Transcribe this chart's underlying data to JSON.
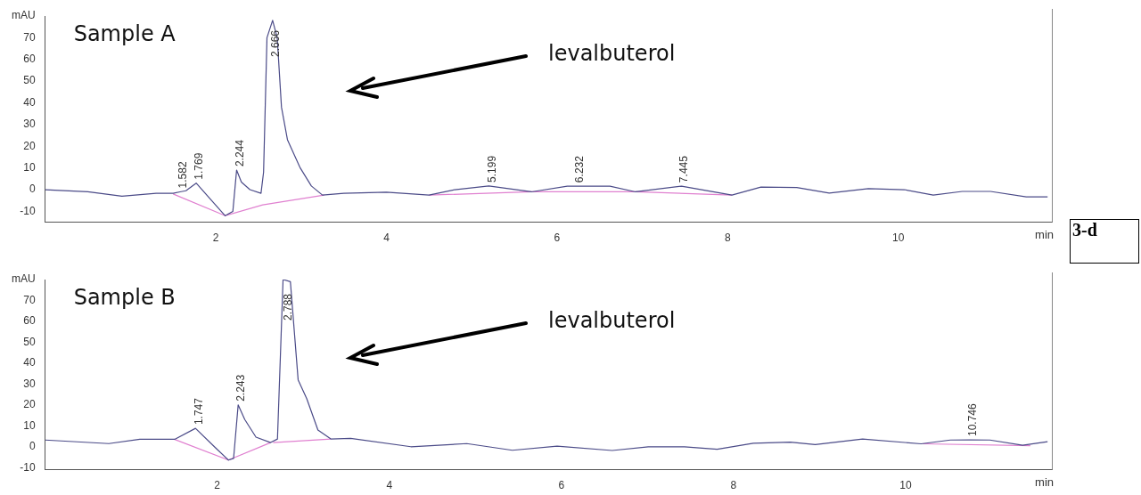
{
  "chart_data": [
    {
      "type": "line",
      "title": "Sample A",
      "xlim": [
        0,
        11.8
      ],
      "xticks": [
        2,
        4,
        6,
        8,
        10
      ],
      "xlabel": "min",
      "ylim": [
        -15,
        80
      ],
      "yticks": [
        -10,
        0,
        10,
        20,
        30,
        40,
        50,
        60,
        70,
        {
          "value": 80,
          "label": "mAU"
        }
      ],
      "grid": false,
      "legend": false,
      "marker": "none",
      "line_style": "solid",
      "series": [
        {
          "color": "#4b4b88",
          "x": [
            0,
            0.5,
            0.9,
            1.3,
            1.5,
            1.58,
            1.65,
            1.77,
            1.95,
            2.11,
            2.2,
            2.244,
            2.3,
            2.4,
            2.53,
            2.56,
            2.6,
            2.666,
            2.72,
            2.77,
            2.84,
            2.99,
            3.12,
            3.25,
            3.5,
            4.0,
            4.5,
            4.8,
            5.2,
            5.7,
            6.12,
            6.62,
            6.92,
            7.46,
            8.05,
            8.39,
            8.81,
            9.19,
            9.65,
            10.07,
            10.41,
            10.75,
            11.08,
            11.5,
            11.75
          ],
          "values": [
            0,
            -1,
            -3,
            -1.7,
            -1.7,
            -1,
            -0.5,
            3,
            -5,
            -12,
            -10,
            9,
            3.5,
            0,
            -1.7,
            8,
            70,
            78,
            70,
            38,
            23,
            10,
            1.7,
            -2.5,
            -1.7,
            -1.2,
            -2.5,
            0,
            1.7,
            -1,
            1.6,
            1.6,
            -1,
            1.6,
            -2.5,
            1.2,
            1,
            -1.6,
            0.5,
            0,
            -2.5,
            -0.8,
            -0.8,
            -3.3,
            -3.3
          ]
        },
        {
          "color": "#e080d0",
          "x": [
            1.5,
            2.11,
            2.55,
            3.27,
            3.4,
            4.5,
            5.7,
            6.92,
            8.05
          ],
          "values": [
            -2,
            -12,
            -7,
            -2.5,
            null,
            -2.5,
            -1,
            -1,
            -2.5
          ]
        }
      ],
      "annotations": [
        {
          "text": "1.582",
          "x": 1.582,
          "y": -1
        },
        {
          "text": "1.769",
          "x": 1.769,
          "y": 3
        },
        {
          "text": "2.244",
          "x": 2.244,
          "y": 9
        },
        {
          "text": "2.666",
          "x": 2.666,
          "y": 78
        },
        {
          "text": "5.199",
          "x": 5.199,
          "y": 1.7
        },
        {
          "text": "6.232",
          "x": 6.232,
          "y": 1.6
        },
        {
          "text": "7.445",
          "x": 7.445,
          "y": 1.6
        },
        "levalbuterol",
        "3-d"
      ]
    },
    {
      "type": "line",
      "title": "Sample B",
      "xlim": [
        0,
        11.7
      ],
      "xticks": [
        2,
        4,
        6,
        8,
        10
      ],
      "xlabel": "min",
      "ylim": [
        -11,
        80
      ],
      "yticks": [
        -10,
        0,
        10,
        20,
        30,
        40,
        50,
        60,
        70,
        {
          "value": 80,
          "label": "mAU"
        }
      ],
      "grid": false,
      "legend": false,
      "marker": "none",
      "line_style": "solid",
      "series": [
        {
          "color": "#4b4b88",
          "x": [
            0,
            0.74,
            1.1,
            1.51,
            1.747,
            1.98,
            2.13,
            2.19,
            2.243,
            2.32,
            2.45,
            2.62,
            2.7,
            2.765,
            2.85,
            2.94,
            3.04,
            3.17,
            3.32,
            3.55,
            4.25,
            4.9,
            5.43,
            5.95,
            6.59,
            7.01,
            7.43,
            7.81,
            8.23,
            8.66,
            8.95,
            9.5,
            10.18,
            10.52,
            10.746,
            10.98,
            11.36,
            11.65
          ],
          "values": [
            3.2,
            1.5,
            3.6,
            3.6,
            8.8,
            -0.5,
            -6.4,
            -5.6,
            20,
            13,
            4.6,
            2,
            3.7,
            80,
            79,
            32,
            23,
            8,
            3.7,
            4,
            0,
            1.5,
            -1.7,
            0.3,
            -1.8,
            0,
            0,
            -1.2,
            1.7,
            2.2,
            1,
            3.7,
            1.4,
            3.2,
            3.3,
            3.2,
            0.7,
            2.4
          ]
        },
        {
          "color": "#e080d0",
          "x": [
            1.5,
            2.13,
            2.62,
            2.63,
            2.65,
            3.32,
            3.5,
            10.2,
            11.45
          ],
          "values": [
            3.6,
            -6.4,
            2,
            null,
            2,
            3.7,
            null,
            1.4,
            0.5
          ]
        }
      ],
      "annotations": [
        {
          "text": "1.747",
          "x": 1.747,
          "y": 8.8
        },
        {
          "text": "2.243",
          "x": 2.243,
          "y": 20
        },
        {
          "text": "2.788",
          "x": 2.788,
          "y": 80
        },
        {
          "text": "10.746",
          "x": 10.746,
          "y": 3.3
        },
        "levalbuterol"
      ]
    }
  ]
}
